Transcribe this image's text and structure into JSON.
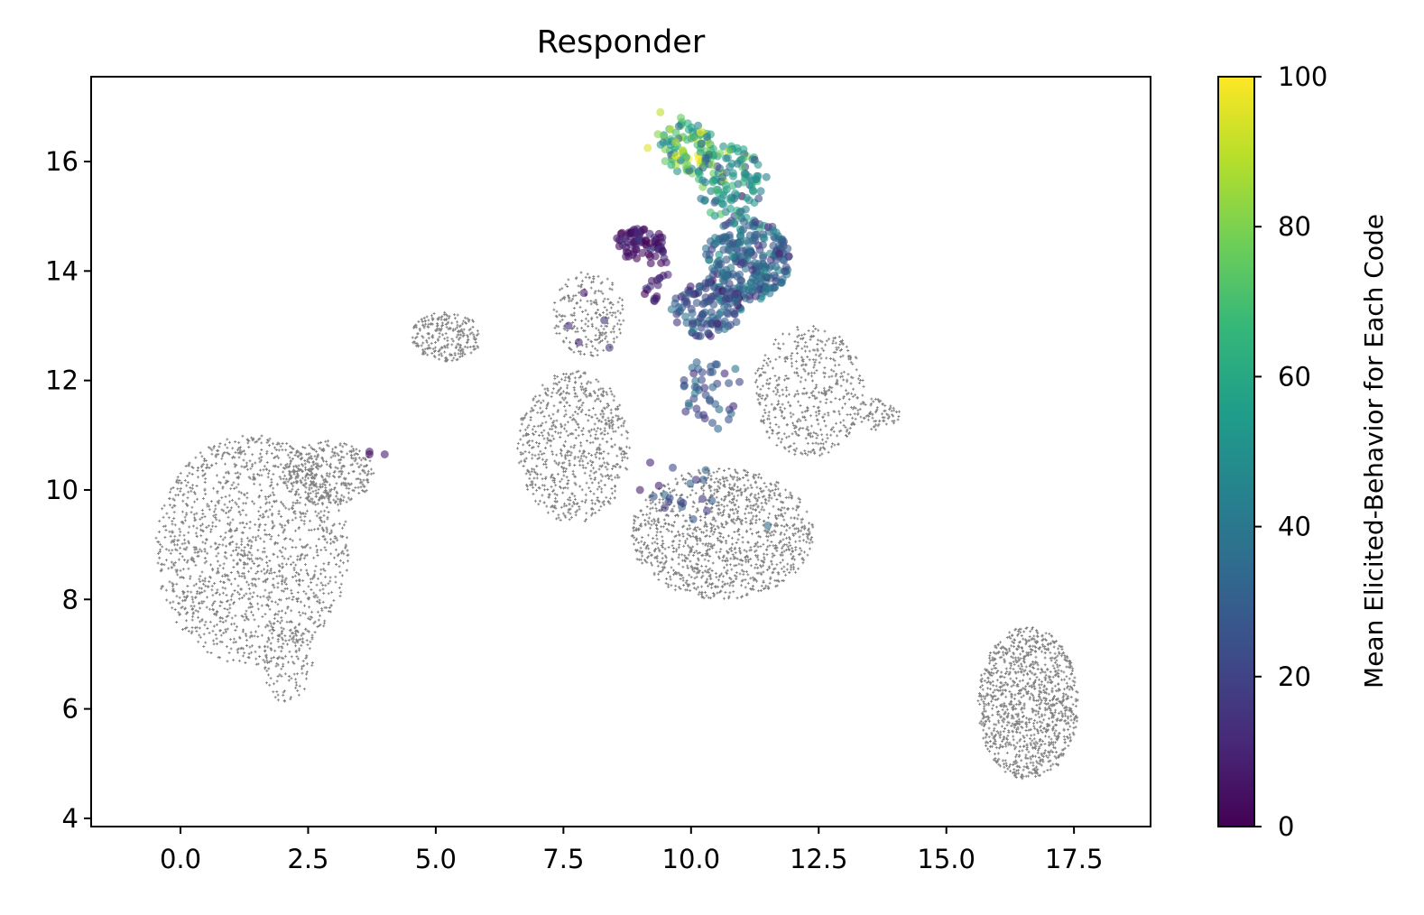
{
  "chart_data": {
    "type": "scatter",
    "title": "Responder",
    "xlabel": "",
    "ylabel": "",
    "xlim": [
      -1.75,
      19.0
    ],
    "ylim": [
      3.85,
      17.55
    ],
    "xticks": [
      "0.0",
      "2.5",
      "5.0",
      "7.5",
      "10.0",
      "12.5",
      "15.0",
      "17.5"
    ],
    "xtick_values": [
      0,
      2.5,
      5,
      7.5,
      10,
      12.5,
      15,
      17.5
    ],
    "yticks": [
      "4",
      "6",
      "8",
      "10",
      "12",
      "14",
      "16"
    ],
    "ytick_values": [
      4,
      6,
      8,
      10,
      12,
      14,
      16
    ],
    "grid": false,
    "background_color": "#808080",
    "background_clusters": [
      {
        "cx": 1.4,
        "cy": 8.9,
        "rx": 1.9,
        "ry": 2.1,
        "n": 1500
      },
      {
        "cx": 2.9,
        "cy": 10.3,
        "rx": 0.9,
        "ry": 0.6,
        "n": 350
      },
      {
        "cx": 2.1,
        "cy": 6.9,
        "rx": 0.5,
        "ry": 0.8,
        "n": 120
      },
      {
        "cx": 5.2,
        "cy": 12.8,
        "rx": 0.7,
        "ry": 0.45,
        "n": 250
      },
      {
        "cx": 7.7,
        "cy": 10.8,
        "rx": 1.1,
        "ry": 1.4,
        "n": 700
      },
      {
        "cx": 8.0,
        "cy": 13.2,
        "rx": 0.7,
        "ry": 0.8,
        "n": 220
      },
      {
        "cx": 10.6,
        "cy": 9.2,
        "rx": 1.8,
        "ry": 1.2,
        "n": 1200
      },
      {
        "cx": 12.3,
        "cy": 11.8,
        "rx": 1.1,
        "ry": 1.2,
        "n": 500
      },
      {
        "cx": 13.6,
        "cy": 11.4,
        "rx": 0.5,
        "ry": 0.3,
        "n": 80
      },
      {
        "cx": 16.6,
        "cy": 6.1,
        "rx": 1.0,
        "ry": 1.4,
        "n": 1100
      }
    ],
    "colored_clusters": [
      {
        "cx": 9.95,
        "cy": 16.25,
        "rx": 0.55,
        "ry": 0.5,
        "n": 90,
        "value": 65,
        "spread": 18
      },
      {
        "cx": 10.8,
        "cy": 15.6,
        "rx": 0.7,
        "ry": 0.7,
        "n": 120,
        "value": 50,
        "spread": 15
      },
      {
        "cx": 11.1,
        "cy": 14.2,
        "rx": 0.85,
        "ry": 0.75,
        "n": 260,
        "value": 33,
        "spread": 10
      },
      {
        "cx": 10.3,
        "cy": 13.3,
        "rx": 0.7,
        "ry": 0.5,
        "n": 120,
        "value": 25,
        "spread": 10
      },
      {
        "cx": 9.0,
        "cy": 14.5,
        "rx": 0.5,
        "ry": 0.3,
        "n": 70,
        "value": 6,
        "spread": 6
      },
      {
        "cx": 9.3,
        "cy": 13.9,
        "rx": 0.25,
        "ry": 0.6,
        "n": 25,
        "value": 10,
        "spread": 8
      },
      {
        "cx": 10.4,
        "cy": 11.8,
        "rx": 0.6,
        "ry": 0.7,
        "n": 45,
        "value": 25,
        "spread": 8
      },
      {
        "cx": 9.9,
        "cy": 10.0,
        "rx": 0.7,
        "ry": 0.6,
        "n": 18,
        "value": 22,
        "spread": 7
      }
    ],
    "colored_points": [
      {
        "x": 3.7,
        "y": 10.7,
        "value": 8
      },
      {
        "x": 4.0,
        "y": 10.65,
        "value": 8
      },
      {
        "x": 3.7,
        "y": 10.65,
        "value": 5
      },
      {
        "x": 7.6,
        "y": 13.0,
        "value": 12
      },
      {
        "x": 7.8,
        "y": 12.7,
        "value": 10
      },
      {
        "x": 8.3,
        "y": 13.1,
        "value": 14
      },
      {
        "x": 7.9,
        "y": 13.6,
        "value": 8
      },
      {
        "x": 8.4,
        "y": 12.6,
        "value": 16
      },
      {
        "x": 9.2,
        "y": 10.5,
        "value": 10
      },
      {
        "x": 9.0,
        "y": 10.0,
        "value": 9
      },
      {
        "x": 9.4,
        "y": 16.9,
        "value": 90
      },
      {
        "x": 9.15,
        "y": 16.25,
        "value": 95
      },
      {
        "x": 9.7,
        "y": 16.35,
        "value": 88
      },
      {
        "x": 9.35,
        "y": 16.5,
        "value": 82
      },
      {
        "x": 9.8,
        "y": 16.8,
        "value": 75
      },
      {
        "x": 11.5,
        "y": 9.35,
        "value": 35
      }
    ],
    "colorbar": {
      "colormap": "viridis",
      "min": 0,
      "max": 100,
      "ticks": [
        "0",
        "20",
        "40",
        "60",
        "80",
        "100"
      ],
      "tick_values": [
        0,
        20,
        40,
        60,
        80,
        100
      ],
      "label": "Mean Elicited-Behavior for Each Code",
      "stops": [
        "#440154",
        "#482878",
        "#3e4a89",
        "#31688e",
        "#26828e",
        "#1f9e89",
        "#35b779",
        "#6ece58",
        "#b5de2b",
        "#fde725"
      ]
    }
  }
}
